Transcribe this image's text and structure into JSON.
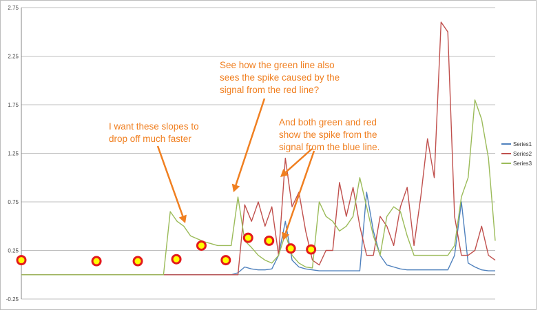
{
  "chart_data": {
    "type": "line",
    "ylim": [
      -0.25,
      2.75
    ],
    "yticks": [
      "-0.25",
      "0.25",
      "0.75",
      "1.25",
      "1.75",
      "2.25",
      "2.75"
    ],
    "grid": true,
    "legend_position": "right",
    "x": [
      0,
      10,
      20,
      30,
      40,
      50,
      60,
      70,
      80,
      90,
      100,
      110,
      120,
      130,
      140,
      150,
      160,
      170,
      180,
      190,
      200,
      210,
      220,
      230,
      240,
      250,
      260,
      270,
      280,
      290,
      300,
      310,
      320,
      330,
      340,
      350,
      360,
      370,
      380,
      390,
      400,
      410,
      420,
      430,
      440,
      450,
      460,
      470,
      480,
      490,
      500,
      510,
      520,
      530,
      540,
      550,
      560,
      570,
      580,
      590,
      600,
      610,
      620,
      630,
      640,
      650,
      660,
      670,
      680,
      690,
      700
    ],
    "series": [
      {
        "name": "Series1",
        "color": "#4f81bd",
        "values": [
          0,
          0,
          0,
          0,
          0,
          0,
          0,
          0,
          0,
          0,
          0,
          0,
          0,
          0,
          0,
          0,
          0,
          0,
          0,
          0,
          0,
          0,
          0,
          0,
          0,
          0,
          0,
          0,
          0,
          0,
          0,
          0,
          0.02,
          0.08,
          0.06,
          0.05,
          0.05,
          0.06,
          0.2,
          0.55,
          0.15,
          0.08,
          0.06,
          0.05,
          0.04,
          0.04,
          0.04,
          0.04,
          0.04,
          0.04,
          0.04,
          0.85,
          0.45,
          0.2,
          0.1,
          0.08,
          0.06,
          0.05,
          0.05,
          0.05,
          0.05,
          0.05,
          0.05,
          0.05,
          0.2,
          0.75,
          0.12,
          0.08,
          0.05,
          0.04,
          0.04
        ]
      },
      {
        "name": "Series2",
        "color": "#c0504d",
        "values": [
          0,
          0,
          0,
          0,
          0,
          0,
          0,
          0,
          0,
          0,
          0,
          0,
          0,
          0,
          0,
          0,
          0,
          0,
          0,
          0,
          0,
          0,
          0,
          0,
          0,
          0,
          0,
          0,
          0,
          0,
          0,
          0,
          0,
          0.72,
          0.55,
          0.75,
          0.5,
          0.7,
          0.2,
          1.2,
          0.7,
          0.85,
          0.45,
          0.15,
          0.1,
          0.25,
          0.25,
          0.95,
          0.6,
          0.9,
          0.5,
          0.2,
          0.2,
          0.6,
          0.5,
          0.3,
          0.7,
          0.9,
          0.3,
          0.8,
          1.4,
          1.0,
          2.6,
          2.5,
          0.6,
          0.2,
          0.2,
          0.25,
          0.5,
          0.2,
          0.15
        ]
      },
      {
        "name": "Series3",
        "color": "#9bbb59",
        "values": [
          0,
          0,
          0,
          0,
          0,
          0,
          0,
          0,
          0,
          0,
          0,
          0,
          0,
          0,
          0,
          0,
          0,
          0,
          0,
          0,
          0,
          0,
          0.65,
          0.55,
          0.5,
          0.4,
          0.37,
          0.34,
          0.32,
          0.3,
          0.3,
          0.3,
          0.8,
          0.35,
          0.28,
          0.2,
          0.15,
          0.12,
          0.2,
          0.42,
          0.2,
          0.12,
          0.08,
          0.07,
          0.75,
          0.6,
          0.55,
          0.45,
          0.5,
          0.6,
          1.0,
          0.7,
          0.4,
          0.2,
          0.6,
          0.7,
          0.65,
          0.4,
          0.2,
          0.2,
          0.2,
          0.2,
          0.2,
          0.2,
          0.3,
          0.8,
          1.0,
          1.8,
          1.6,
          1.2,
          0.35
        ]
      }
    ],
    "annotations": [
      {
        "lines": [
          "I want these slopes to",
          "drop off much faster"
        ]
      },
      {
        "lines": [
          "See how the green line also",
          "sees the spike caused by the",
          "signal from the red line?"
        ]
      },
      {
        "lines": [
          "And both green and red",
          "show the spike from the",
          "signal from the blue line."
        ]
      }
    ],
    "markers": [
      {
        "x": 0,
        "y": 0.15
      },
      {
        "x": 111,
        "y": 0.14
      },
      {
        "x": 172,
        "y": 0.14
      },
      {
        "x": 229,
        "y": 0.16
      },
      {
        "x": 266,
        "y": 0.3
      },
      {
        "x": 302,
        "y": 0.15
      },
      {
        "x": 335,
        "y": 0.38
      },
      {
        "x": 366,
        "y": 0.35
      },
      {
        "x": 398,
        "y": 0.27
      },
      {
        "x": 428,
        "y": 0.26
      }
    ],
    "annotation_color": "#f07f20",
    "marker_color": "#ffff00",
    "marker_ring_color": "#e31a1c"
  }
}
